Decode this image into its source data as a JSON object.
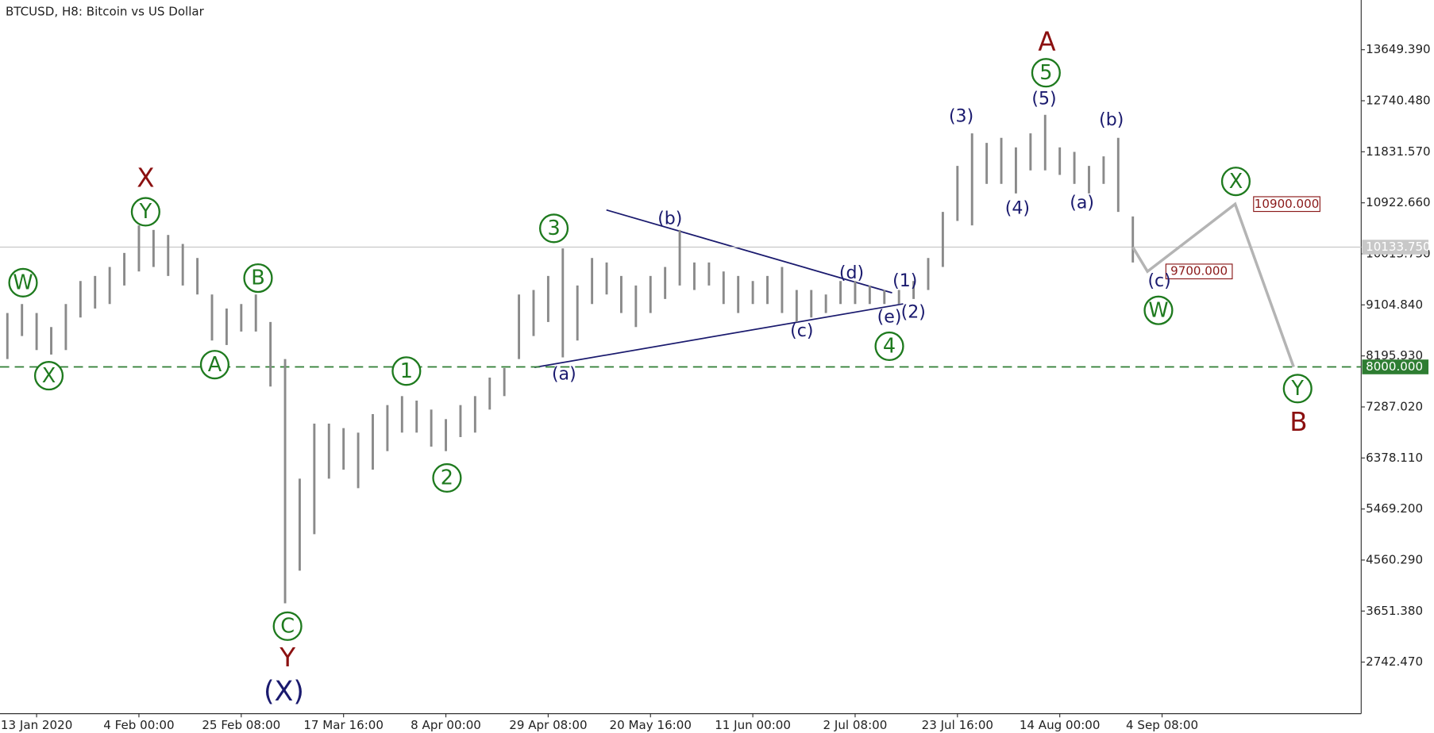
{
  "chart_data": {
    "type": "ohlc",
    "title": "BTCUSD, H8:  Bitcoin vs US Dollar",
    "color": "#8a8a8a",
    "ylim": [
      1824,
      14535
    ],
    "yticks": [
      {
        "value": 2742.47,
        "label": "2742.470"
      },
      {
        "value": 3651.38,
        "label": "3651.380"
      },
      {
        "value": 4560.29,
        "label": "4560.290"
      },
      {
        "value": 5469.2,
        "label": "5469.200"
      },
      {
        "value": 6378.11,
        "label": "6378.110"
      },
      {
        "value": 7287.02,
        "label": "7287.020"
      },
      {
        "value": 8195.93,
        "label": "8195.930"
      },
      {
        "value": 9104.84,
        "label": "9104.840"
      },
      {
        "value": 10013.75,
        "label": "10013.750"
      },
      {
        "value": 10922.66,
        "label": "10922.660"
      },
      {
        "value": 11831.57,
        "label": "11831.570"
      },
      {
        "value": 12740.48,
        "label": "12740.480"
      },
      {
        "value": 13649.39,
        "label": "13649.390"
      }
    ],
    "categories": [
      null,
      null,
      "13 Jan 2020",
      null,
      null,
      null,
      null,
      null,
      null,
      "4 Feb 00:00",
      null,
      null,
      null,
      null,
      null,
      null,
      "25 Feb 08:00",
      null,
      null,
      null,
      null,
      null,
      null,
      "17 Mar 16:00",
      null,
      null,
      null,
      null,
      null,
      null,
      "8 Apr 00:00",
      null,
      null,
      null,
      null,
      null,
      null,
      "29 Apr 08:00",
      null,
      null,
      null,
      null,
      null,
      null,
      "20 May 16:00",
      null,
      null,
      null,
      null,
      null,
      null,
      "11 Jun 00:00",
      null,
      null,
      null,
      null,
      null,
      null,
      "2 Jul 08:00",
      null,
      null,
      null,
      null,
      null,
      null,
      "23 Jul 16:00",
      null,
      null,
      null,
      null,
      null,
      null,
      "14 Aug 00:00",
      null,
      null,
      null,
      null,
      null,
      null,
      "4 Sep 08:00",
      null,
      null,
      null,
      null,
      null,
      null,
      null,
      null,
      null
    ],
    "high": [
      8960,
      9120,
      8960,
      8710,
      9120,
      9530,
      9620,
      9780,
      10030,
      10520,
      10440,
      10350,
      10190,
      9940,
      9290,
      9040,
      9120,
      9290,
      8800,
      8140,
      6010,
      6990,
      6990,
      6910,
      6830,
      7160,
      7320,
      7480,
      7400,
      7240,
      7070,
      7320,
      7480,
      7810,
      7980,
      9290,
      9370,
      9620,
      10110,
      9450,
      9940,
      9860,
      9620,
      9450,
      9620,
      9780,
      10440,
      9860,
      9860,
      9700,
      9620,
      9530,
      9620,
      9780,
      9370,
      9370,
      9290,
      9530,
      9530,
      9450,
      9370,
      9370,
      9530,
      9940,
      10760,
      11580,
      12160,
      11990,
      12080,
      11910,
      12160,
      12490,
      11910,
      11830,
      11580,
      11750,
      12080,
      10680,
      null,
      null,
      null,
      null,
      null,
      null,
      null,
      null,
      null,
      null,
      null
    ],
    "low": [
      8140,
      8550,
      8300,
      8220,
      8300,
      8880,
      9040,
      9120,
      9450,
      9700,
      9780,
      9620,
      9450,
      9290,
      8470,
      8390,
      8630,
      8630,
      7650,
      3790,
      4370,
      5020,
      6010,
      6170,
      5840,
      6170,
      6500,
      6830,
      6830,
      6580,
      6500,
      6750,
      6830,
      7240,
      7480,
      8140,
      8550,
      8800,
      8170,
      8470,
      9120,
      9290,
      8960,
      8710,
      8960,
      9210,
      9450,
      9370,
      9450,
      9120,
      8960,
      9120,
      9120,
      8960,
      8800,
      8880,
      8960,
      9120,
      9120,
      9120,
      9120,
      9120,
      9210,
      9370,
      9780,
      10600,
      10520,
      11260,
      11260,
      11090,
      11500,
      11500,
      11420,
      11260,
      11090,
      11260,
      10760,
      9860,
      null,
      null,
      null,
      null,
      null,
      null,
      null,
      null,
      null,
      null,
      null
    ],
    "projection": {
      "color": "#b4b4b4",
      "values": [
        null,
        null,
        null,
        null,
        null,
        null,
        null,
        null,
        null,
        null,
        null,
        null,
        null,
        null,
        null,
        null,
        null,
        null,
        null,
        null,
        null,
        null,
        null,
        null,
        null,
        null,
        null,
        null,
        null,
        null,
        null,
        null,
        null,
        null,
        null,
        null,
        null,
        null,
        null,
        null,
        null,
        null,
        null,
        null,
        null,
        null,
        null,
        null,
        null,
        null,
        null,
        null,
        null,
        null,
        null,
        null,
        null,
        null,
        null,
        null,
        null,
        null,
        null,
        null,
        null,
        null,
        null,
        null,
        null,
        null,
        null,
        null,
        null,
        null,
        null,
        null,
        null,
        10133.75,
        9700,
        null,
        null,
        null,
        null,
        null,
        10900,
        null,
        null,
        null,
        8000
      ],
      "value_labels": [
        null,
        null,
        null,
        null,
        null,
        null,
        null,
        null,
        null,
        null,
        null,
        null,
        null,
        null,
        null,
        null,
        null,
        null,
        null,
        null,
        null,
        null,
        null,
        null,
        null,
        null,
        null,
        null,
        null,
        null,
        null,
        null,
        null,
        null,
        null,
        null,
        null,
        null,
        null,
        null,
        null,
        null,
        null,
        null,
        null,
        null,
        null,
        null,
        null,
        null,
        null,
        null,
        null,
        null,
        null,
        null,
        null,
        null,
        null,
        null,
        null,
        null,
        null,
        null,
        null,
        null,
        null,
        null,
        null,
        null,
        null,
        null,
        null,
        null,
        null,
        null,
        null,
        null,
        "9700.000",
        null,
        null,
        null,
        null,
        null,
        "10900.000",
        null,
        null,
        null,
        null
      ]
    },
    "levels": [
      {
        "value": 10133.75,
        "label": "10133.750",
        "color": "#c8c8c8",
        "dashed": false
      },
      {
        "value": 8000,
        "label": "8000.000",
        "color": "#2e7d32",
        "dashed": true
      }
    ],
    "annotations": [
      "W",
      "X",
      "Y",
      "A",
      "B",
      "C",
      "1",
      "2",
      "3",
      "4",
      "5",
      "W",
      "X",
      "Y",
      "X",
      "Y",
      "A",
      "B",
      "(X)",
      "(a)",
      "(b)",
      "(c)",
      "(d)",
      "(e)",
      "(1)",
      "(2)",
      "(3)",
      "(4)",
      "(5)",
      "(a)",
      "(b)",
      "(c)"
    ]
  }
}
